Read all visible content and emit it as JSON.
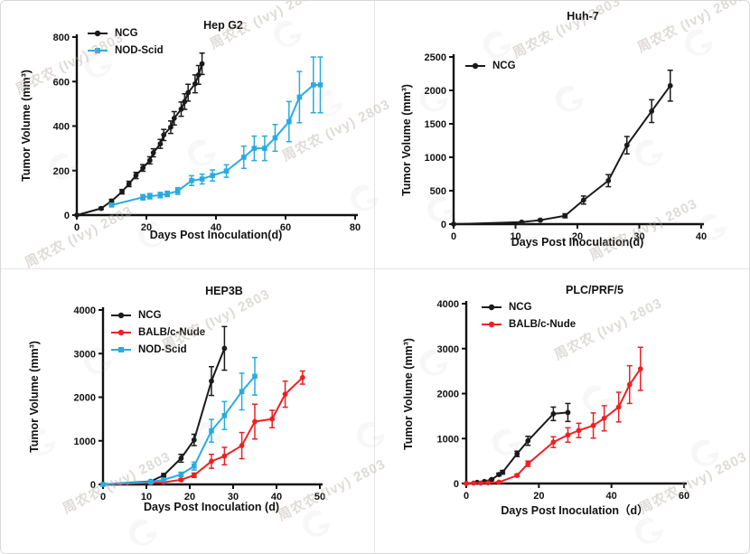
{
  "watermark": {
    "text": "周农农 (Ivy) 2803",
    "logo": "leaf-G-logo"
  },
  "chart_data": [
    {
      "id": "hepg2",
      "type": "line",
      "title": "Hep G2",
      "xlabel": "Days Post  Inoculation(d)",
      "ylabel": "Tumor Volume (mm³)",
      "xlim": [
        0,
        80
      ],
      "xticks": [
        0,
        20,
        40,
        60,
        80
      ],
      "ylim": [
        0,
        800
      ],
      "yticks": [
        0,
        200,
        400,
        600,
        800
      ],
      "grid": false,
      "legend_position": "top-left-inside",
      "series": [
        {
          "name": "NCG",
          "color": "#1a1a1a",
          "marker": "circle",
          "points": [
            [
              0,
              0,
              0
            ],
            [
              7,
              30,
              5
            ],
            [
              10,
              63,
              8
            ],
            [
              13,
              105,
              10
            ],
            [
              15,
              140,
              12
            ],
            [
              17,
              178,
              14
            ],
            [
              19,
              212,
              15
            ],
            [
              21,
              246,
              16
            ],
            [
              22,
              280,
              18
            ],
            [
              24,
              320,
              20
            ],
            [
              25,
              360,
              25
            ],
            [
              27,
              395,
              28
            ],
            [
              28,
              435,
              30
            ],
            [
              30,
              476,
              32
            ],
            [
              31,
              510,
              35
            ],
            [
              32,
              550,
              38
            ],
            [
              34,
              590,
              40
            ],
            [
              35,
              630,
              42
            ],
            [
              36,
              680,
              48
            ]
          ]
        },
        {
          "name": "NOD-Scid",
          "color": "#29abe2",
          "marker": "square",
          "points": [
            [
              10,
              45,
              5
            ],
            [
              19,
              80,
              12
            ],
            [
              21,
              85,
              12
            ],
            [
              24,
              90,
              12
            ],
            [
              26,
              95,
              12
            ],
            [
              29,
              108,
              15
            ],
            [
              33,
              155,
              22
            ],
            [
              36,
              162,
              22
            ],
            [
              39,
              178,
              25
            ],
            [
              43,
              198,
              28
            ],
            [
              48,
              260,
              50
            ],
            [
              51,
              300,
              55
            ],
            [
              54,
              300,
              55
            ],
            [
              57,
              347,
              60
            ],
            [
              61,
              420,
              90
            ],
            [
              64,
              530,
              115
            ],
            [
              68,
              585,
              125
            ],
            [
              70,
              585,
              125
            ]
          ]
        }
      ]
    },
    {
      "id": "huh7",
      "type": "line",
      "title": "Huh-7",
      "xlabel": "Days Post  Inoculation(d)",
      "ylabel": "Tumor Volume (mm³)",
      "xlim": [
        0,
        40
      ],
      "xticks": [
        0,
        10,
        20,
        30,
        40
      ],
      "ylim": [
        0,
        2500
      ],
      "yticks": [
        0,
        500,
        1000,
        1500,
        2000,
        2500
      ],
      "grid": false,
      "legend_position": "top-left-inside",
      "series": [
        {
          "name": "NCG",
          "color": "#1a1a1a",
          "marker": "circle",
          "points": [
            [
              0,
              0,
              0
            ],
            [
              11,
              30,
              8
            ],
            [
              14,
              60,
              12
            ],
            [
              18,
              125,
              30
            ],
            [
              21,
              360,
              60
            ],
            [
              25,
              650,
              90
            ],
            [
              28,
              1180,
              130
            ],
            [
              32,
              1690,
              170
            ],
            [
              35,
              2070,
              230
            ]
          ]
        }
      ]
    },
    {
      "id": "hep3b",
      "type": "line",
      "title": "HEP3B",
      "xlabel": "Days Post Inoculation (d)",
      "ylabel": "Tumor Volume (mm³)",
      "xlim": [
        0,
        50
      ],
      "xticks": [
        0,
        10,
        20,
        30,
        40,
        50
      ],
      "ylim": [
        0,
        4000
      ],
      "yticks": [
        0,
        1000,
        2000,
        3000,
        4000
      ],
      "grid": false,
      "legend_position": "top-left-inside",
      "series": [
        {
          "name": "NCG",
          "color": "#1a1a1a",
          "marker": "circle",
          "points": [
            [
              0,
              0,
              0
            ],
            [
              11,
              70,
              15
            ],
            [
              14,
              210,
              40
            ],
            [
              18,
              600,
              90
            ],
            [
              21,
              1020,
              130
            ],
            [
              25,
              2370,
              330
            ],
            [
              28,
              3120,
              500
            ]
          ]
        },
        {
          "name": "BALB/c-Nude",
          "color": "#ed2024",
          "marker": "circle",
          "points": [
            [
              0,
              0,
              0
            ],
            [
              11,
              35,
              10
            ],
            [
              14,
              50,
              15
            ],
            [
              18,
              105,
              25
            ],
            [
              21,
              210,
              50
            ],
            [
              25,
              530,
              160
            ],
            [
              28,
              650,
              200
            ],
            [
              32,
              890,
              300
            ],
            [
              35,
              1440,
              400
            ],
            [
              39,
              1500,
              200
            ],
            [
              42,
              2070,
              300
            ],
            [
              46,
              2450,
              150
            ]
          ]
        },
        {
          "name": "NOD-Scid",
          "color": "#29abe2",
          "marker": "square",
          "points": [
            [
              0,
              0,
              0
            ],
            [
              11,
              60,
              15
            ],
            [
              14,
              105,
              25
            ],
            [
              18,
              230,
              50
            ],
            [
              21,
              420,
              90
            ],
            [
              25,
              1230,
              260
            ],
            [
              28,
              1580,
              320
            ],
            [
              32,
              2130,
              420
            ],
            [
              35,
              2480,
              430
            ]
          ]
        }
      ]
    },
    {
      "id": "plcprf5",
      "type": "line",
      "title": "PLC/PRF/5",
      "xlabel": "Days Post Inoculation（d）",
      "ylabel": "Tumor Volume (mm³)",
      "xlim": [
        0,
        60
      ],
      "xticks": [
        0,
        20,
        40,
        60
      ],
      "ylim": [
        0,
        4000
      ],
      "yticks": [
        0,
        1000,
        2000,
        3000,
        4000
      ],
      "grid": false,
      "legend_position": "top-left-inside",
      "series": [
        {
          "name": "NCG",
          "color": "#1a1a1a",
          "marker": "circle",
          "points": [
            [
              0,
              0,
              0
            ],
            [
              3,
              25,
              5
            ],
            [
              5,
              45,
              8
            ],
            [
              7,
              90,
              15
            ],
            [
              9,
              200,
              30
            ],
            [
              10,
              250,
              40
            ],
            [
              14,
              660,
              60
            ],
            [
              17,
              950,
              100
            ],
            [
              24,
              1550,
              150
            ],
            [
              28,
              1580,
              200
            ]
          ]
        },
        {
          "name": "BALB/c-Nude",
          "color": "#ed2024",
          "marker": "circle",
          "points": [
            [
              0,
              0,
              0
            ],
            [
              2,
              10,
              0
            ],
            [
              4,
              10,
              0
            ],
            [
              6,
              15,
              5
            ],
            [
              9,
              30,
              10
            ],
            [
              14,
              180,
              30
            ],
            [
              17,
              440,
              60
            ],
            [
              24,
              920,
              120
            ],
            [
              28,
              1080,
              160
            ],
            [
              31,
              1180,
              160
            ],
            [
              35,
              1290,
              280
            ],
            [
              38,
              1450,
              280
            ],
            [
              42,
              1700,
              330
            ],
            [
              45,
              2200,
              420
            ],
            [
              48,
              2550,
              480
            ]
          ]
        }
      ]
    }
  ]
}
